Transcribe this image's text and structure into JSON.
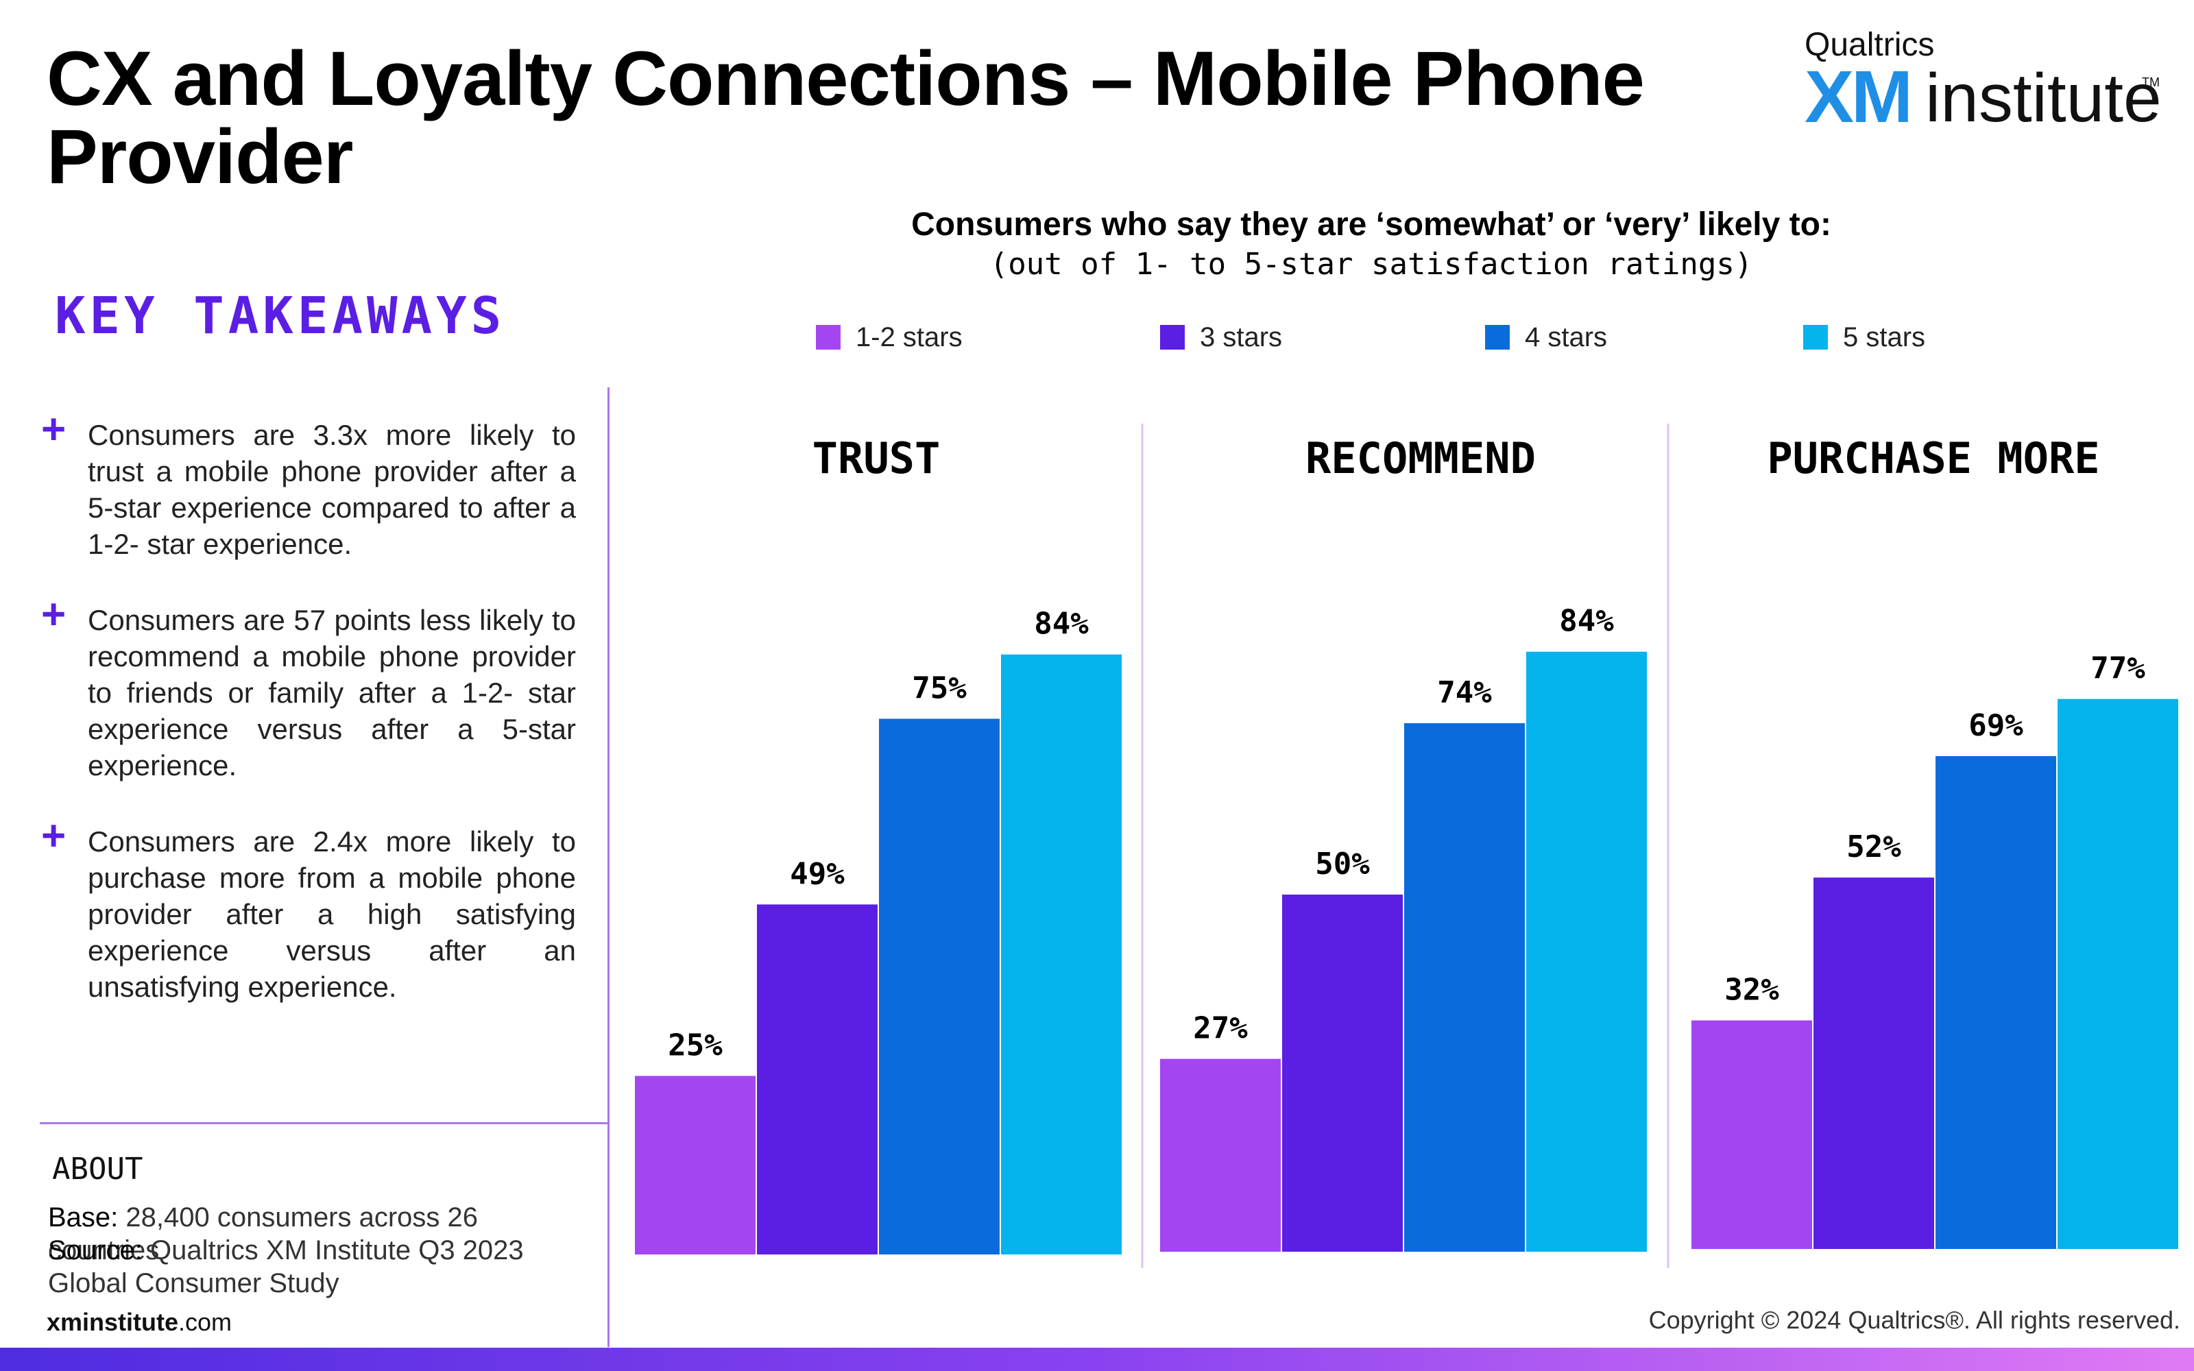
{
  "header": {
    "title": "CX and Loyalty Connections – Mobile Phone Provider"
  },
  "logo": {
    "brand": "Qualtrics",
    "mark": "XM",
    "word": "institute",
    "tm": "TM"
  },
  "chart_heading": "Consumers who say they are ‘somewhat’ or ‘very’ likely to:",
  "chart_subheading": "(out of 1- to 5-star satisfaction ratings)",
  "key_takeaways": {
    "heading": "KEY TAKEAWAYS",
    "items": [
      "Consumers are 3.3x more likely to trust a mobile phone provider after a 5-star experience compared to after a 1-2- star experience.",
      "Consumers are 57 points less likely to recommend a mobile phone provider to friends or family after a 1-2- star experience versus after a 5-star experience.",
      "Consumers are 2.4x more likely to purchase more from a mobile phone provider after a high satisfying experience versus after an unsatisfying experience."
    ]
  },
  "about": {
    "heading": "ABOUT",
    "base_label": "Base:",
    "base_text": "28,400 consumers across 26 countries",
    "source_label": "Source:",
    "source_text": "Qualtrics XM Institute Q3 2023 Global Consumer Study"
  },
  "footer": {
    "site_bold": "xminstitute",
    "site_rest": ".com",
    "copyright": "Copyright © 2024 Qualtrics®. All rights reserved."
  },
  "colors": {
    "accent": "#5b1ee3",
    "series": [
      "#a445f2",
      "#5b1ee3",
      "#0a6cdc",
      "#05b4ec"
    ]
  },
  "chart_data": {
    "type": "bar",
    "categories": [
      "TRUST",
      "RECOMMEND",
      "PURCHASE MORE"
    ],
    "series": [
      {
        "name": "1-2 stars",
        "values": [
          25,
          27,
          32
        ]
      },
      {
        "name": "3 stars",
        "values": [
          49,
          50,
          52
        ]
      },
      {
        "name": "4 stars",
        "values": [
          75,
          74,
          69
        ]
      },
      {
        "name": "5 stars",
        "values": [
          84,
          84,
          77
        ]
      }
    ],
    "value_suffix": "%",
    "ylim": [
      0,
      100
    ],
    "grid": false,
    "legend_position": "top"
  }
}
